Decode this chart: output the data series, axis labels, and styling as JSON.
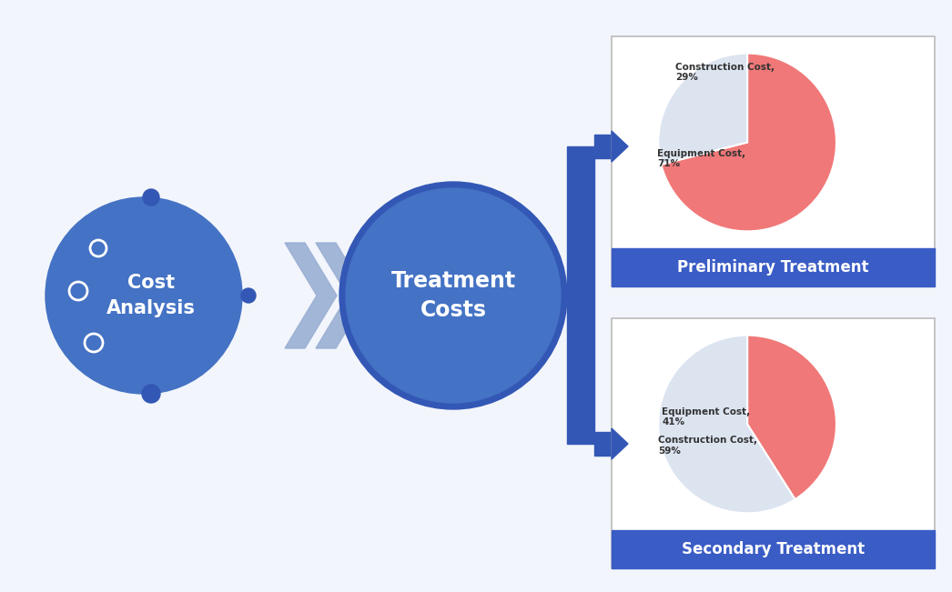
{
  "bg_color": "#f2f5fb",
  "blue_dark": "#3357b5",
  "blue_medium": "#4472c4",
  "blue_connector": "#3357b5",
  "blue_arrow": "#9aafd4",
  "red_pie": "#f07878",
  "gray_pie": "#dce4f0",
  "label_blue_bg": "#3a5cc5",
  "preliminary": {
    "equipment_pct": 71,
    "construction_pct": 29,
    "title": "Preliminary Treatment",
    "equipment_label": "Equipment Cost,\n71%",
    "construction_label": "Construction Cost,\n29%"
  },
  "secondary": {
    "equipment_pct": 41,
    "construction_pct": 59,
    "title": "Secondary Treatment",
    "equipment_label": "Equipment Cost,\n41%",
    "construction_label": "Construction Cost,\n59%"
  },
  "cost_analysis_text_line1": "Cost",
  "cost_analysis_text_line2": "Analysis",
  "treatment_costs_text_line1": "Treatment",
  "treatment_costs_text_line2": "Costs",
  "white": "#ffffff",
  "text_dark": "#222222",
  "box_border": "#bbbbbb"
}
